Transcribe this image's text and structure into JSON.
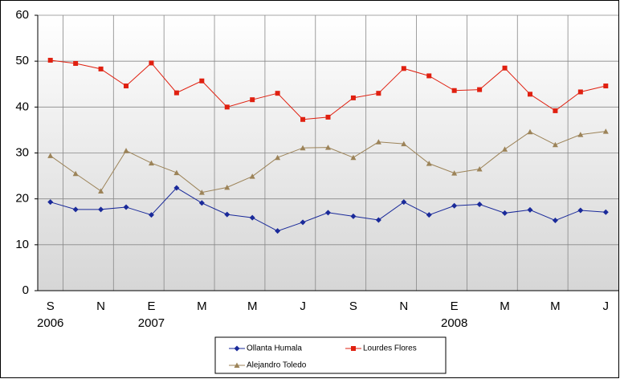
{
  "chart_data": {
    "type": "line",
    "categories": [
      "S",
      null,
      "N",
      null,
      "E",
      null,
      "M",
      null,
      "M",
      null,
      "J",
      null,
      "S",
      null,
      "N",
      null,
      "E",
      null,
      "M",
      null,
      "M",
      null,
      "J"
    ],
    "x_year_labels": [
      "2006",
      null,
      null,
      null,
      "2007",
      null,
      null,
      null,
      null,
      null,
      null,
      null,
      null,
      null,
      null,
      null,
      "2008",
      null,
      null,
      null,
      null,
      null,
      null
    ],
    "series": [
      {
        "name": "Ollanta Humala",
        "color": "#1a2a9a",
        "marker": "diamond",
        "values": [
          19.3,
          17.7,
          17.7,
          18.2,
          16.5,
          22.4,
          19.1,
          16.6,
          15.9,
          13,
          14.9,
          17,
          16.2,
          15.4,
          19.3,
          16.5,
          18.5,
          18.8,
          16.9,
          17.6,
          15.3,
          17.5,
          17.1
        ]
      },
      {
        "name": "Lourdes Flores",
        "color": "#e02010",
        "marker": "square",
        "values": [
          50.2,
          49.5,
          48.3,
          44.6,
          49.6,
          43.1,
          45.7,
          40,
          41.6,
          43,
          37.3,
          37.8,
          42,
          43,
          48.4,
          46.8,
          43.6,
          43.8,
          48.5,
          42.8,
          39.2,
          43.3,
          44.6
        ]
      },
      {
        "name": "Alejandro Toledo",
        "color": "#9c8358",
        "marker": "triangle",
        "values": [
          29.4,
          25.5,
          21.7,
          30.5,
          27.8,
          25.7,
          21.4,
          22.5,
          24.9,
          29,
          31.1,
          31.2,
          29,
          32.4,
          32,
          27.7,
          25.6,
          26.5,
          30.8,
          34.6,
          31.8,
          34,
          34.7
        ]
      }
    ],
    "ylim": [
      0,
      60
    ],
    "yticks": [
      0,
      10,
      20,
      30,
      40,
      50,
      60
    ],
    "grid": true,
    "legend": "bottom"
  }
}
